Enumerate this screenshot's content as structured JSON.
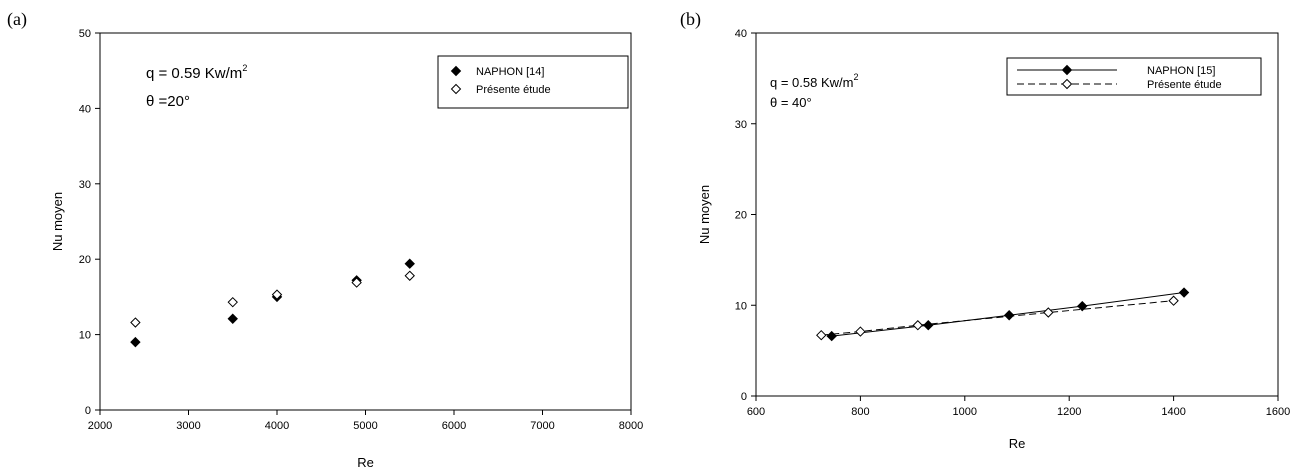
{
  "chart_data": [
    {
      "type": "scatter",
      "panel_label": "(a)",
      "xlabel": "Re",
      "ylabel": "Nu moyen",
      "xlim": [
        2000,
        8000
      ],
      "ylim": [
        0,
        50
      ],
      "xticks": [
        2000,
        3000,
        4000,
        5000,
        6000,
        7000,
        8000
      ],
      "yticks": [
        0,
        10,
        20,
        30,
        40,
        50
      ],
      "annotation_q": "q = 0.59 Kw/m",
      "annotation_q_sup": "2",
      "annotation_theta": "θ =20°",
      "legend_position": "top-right",
      "series": [
        {
          "name": "NAPHON [14]",
          "marker": "filled-diamond",
          "x": [
            2400,
            3500,
            4000,
            4900,
            5500
          ],
          "y": [
            9.0,
            12.1,
            15.0,
            17.2,
            19.4
          ]
        },
        {
          "name": "Présente étude",
          "marker": "open-diamond",
          "x": [
            2400,
            3500,
            4000,
            4900,
            5500
          ],
          "y": [
            11.6,
            14.3,
            15.3,
            16.9,
            17.8
          ]
        }
      ]
    },
    {
      "type": "line",
      "panel_label": "(b)",
      "xlabel": "Re",
      "ylabel": "Nu moyen",
      "xlim": [
        600,
        1600
      ],
      "ylim": [
        0,
        40
      ],
      "xticks": [
        600,
        800,
        1000,
        1200,
        1400,
        1600
      ],
      "yticks": [
        0,
        10,
        20,
        30,
        40
      ],
      "annotation_q": "q = 0.58 Kw/m",
      "annotation_q_sup": "2",
      "annotation_theta": "θ = 40°",
      "legend_position": "top-right",
      "series": [
        {
          "name": "NAPHON [15]",
          "marker": "filled-diamond",
          "line": "solid",
          "x": [
            745,
            930,
            1085,
            1225,
            1420
          ],
          "y": [
            6.6,
            7.8,
            8.9,
            9.9,
            11.4
          ]
        },
        {
          "name": "Présente étude",
          "marker": "open-diamond",
          "line": "dashed",
          "x": [
            725,
            800,
            910,
            1160,
            1400
          ],
          "y": [
            6.7,
            7.1,
            7.8,
            9.2,
            10.5
          ]
        }
      ]
    }
  ]
}
